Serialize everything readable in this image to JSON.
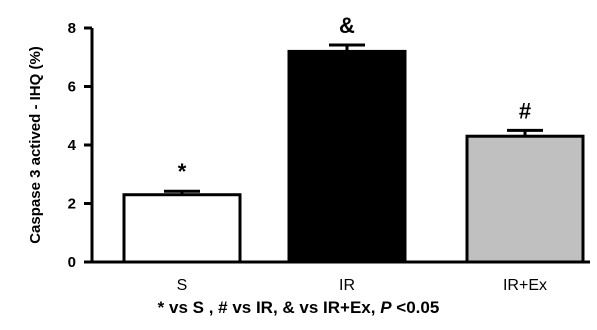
{
  "chart_data": {
    "type": "bar",
    "title": "",
    "xlabel": "",
    "ylabel": "Caspase 3 actived - IHQ (%)",
    "ylim": [
      0,
      8
    ],
    "yticks": [
      "0",
      "2",
      "4",
      "6",
      "8"
    ],
    "categories": [
      "S",
      "IR",
      "IR+Ex"
    ],
    "values": [
      2.3,
      7.2,
      4.3
    ],
    "errors": [
      0.12,
      0.22,
      0.2
    ],
    "significance": [
      "*",
      "&",
      "#"
    ],
    "colors": [
      "#ffffff",
      "#000000",
      "#c0c0c0"
    ],
    "footnote": {
      "part1": "* vs S , # vs IR, & vs IR+Ex, ",
      "p": "P",
      "part2": " <0.05"
    }
  }
}
